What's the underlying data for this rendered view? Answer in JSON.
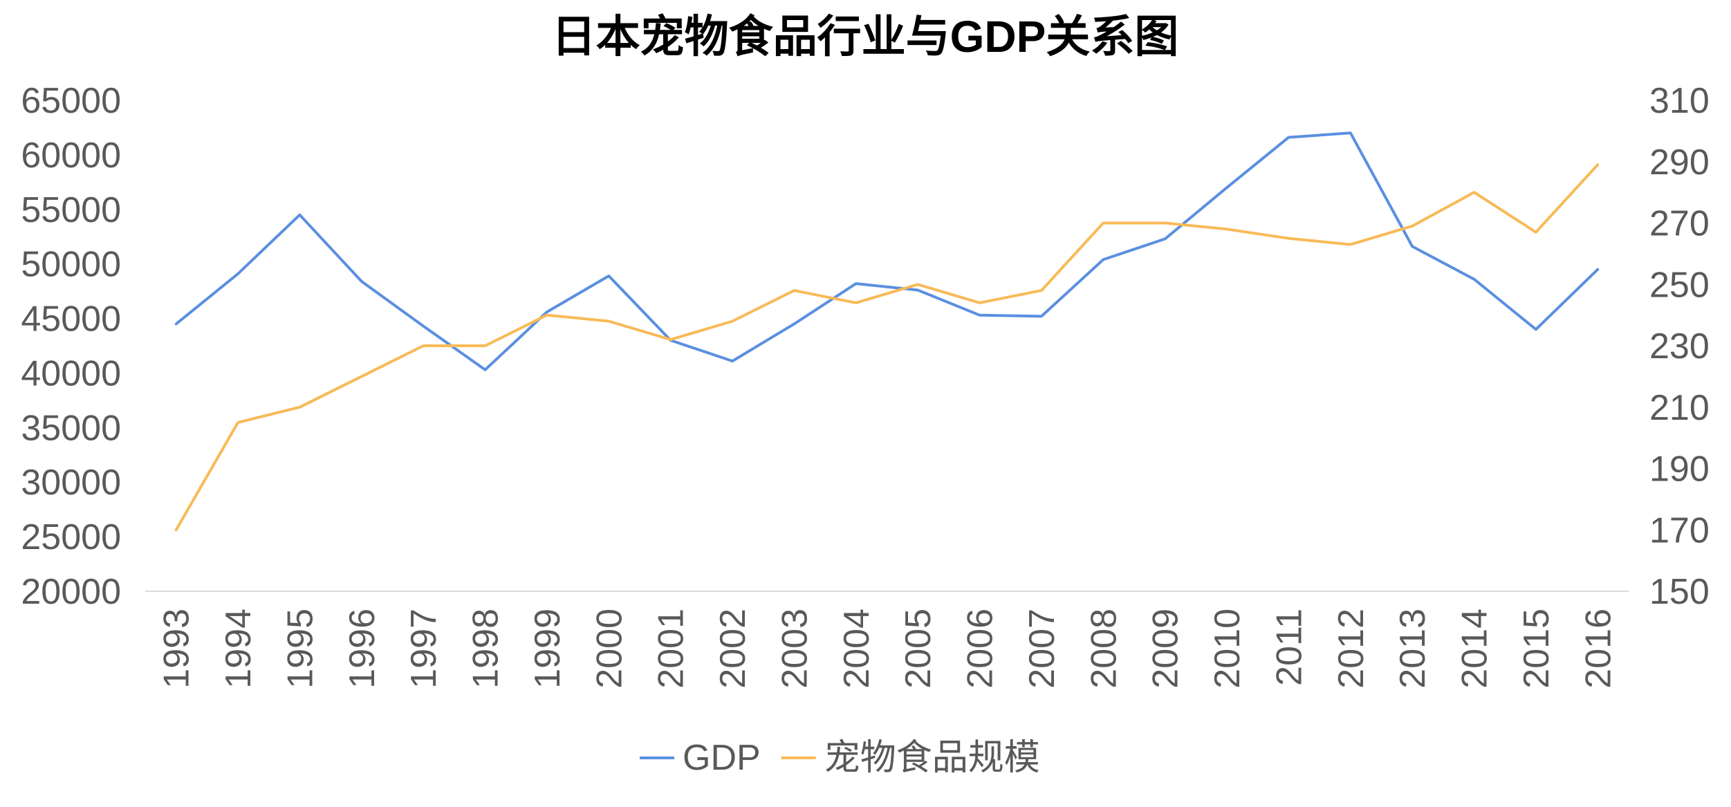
{
  "chart_data": {
    "type": "line",
    "title": "日本宠物食品行业与GDP关系图",
    "categories": [
      "1993",
      "1994",
      "1995",
      "1996",
      "1997",
      "1998",
      "1999",
      "2000",
      "2001",
      "2002",
      "2003",
      "2004",
      "2005",
      "2006",
      "2007",
      "2008",
      "2009",
      "2010",
      "2011",
      "2012",
      "2013",
      "2014",
      "2015",
      "2016"
    ],
    "y_left": {
      "ylim": [
        20000,
        65000
      ],
      "ticks": [
        20000,
        25000,
        30000,
        35000,
        40000,
        45000,
        50000,
        55000,
        60000,
        65000
      ]
    },
    "y_right": {
      "ylim": [
        150,
        310
      ],
      "ticks": [
        150,
        170,
        190,
        210,
        230,
        250,
        270,
        290,
        310
      ]
    },
    "series": [
      {
        "name": "GDP",
        "axis": "left",
        "color": "#5B8FE0",
        "values": [
          44500,
          49100,
          54500,
          48400,
          44300,
          40300,
          45600,
          48900,
          43000,
          41100,
          44500,
          48200,
          47600,
          45300,
          45200,
          50400,
          52300,
          57000,
          61600,
          62000,
          51600,
          48600,
          44000,
          49500
        ]
      },
      {
        "name": "宠物食品规模",
        "axis": "right",
        "color": "#F8BA57",
        "values": [
          170,
          205,
          210,
          220,
          230,
          230,
          240,
          238,
          232,
          238,
          248,
          244,
          250,
          244,
          248,
          270,
          270,
          268,
          265,
          263,
          269,
          280,
          267,
          289
        ]
      }
    ],
    "legend_position": "bottom-center",
    "grid": false
  }
}
